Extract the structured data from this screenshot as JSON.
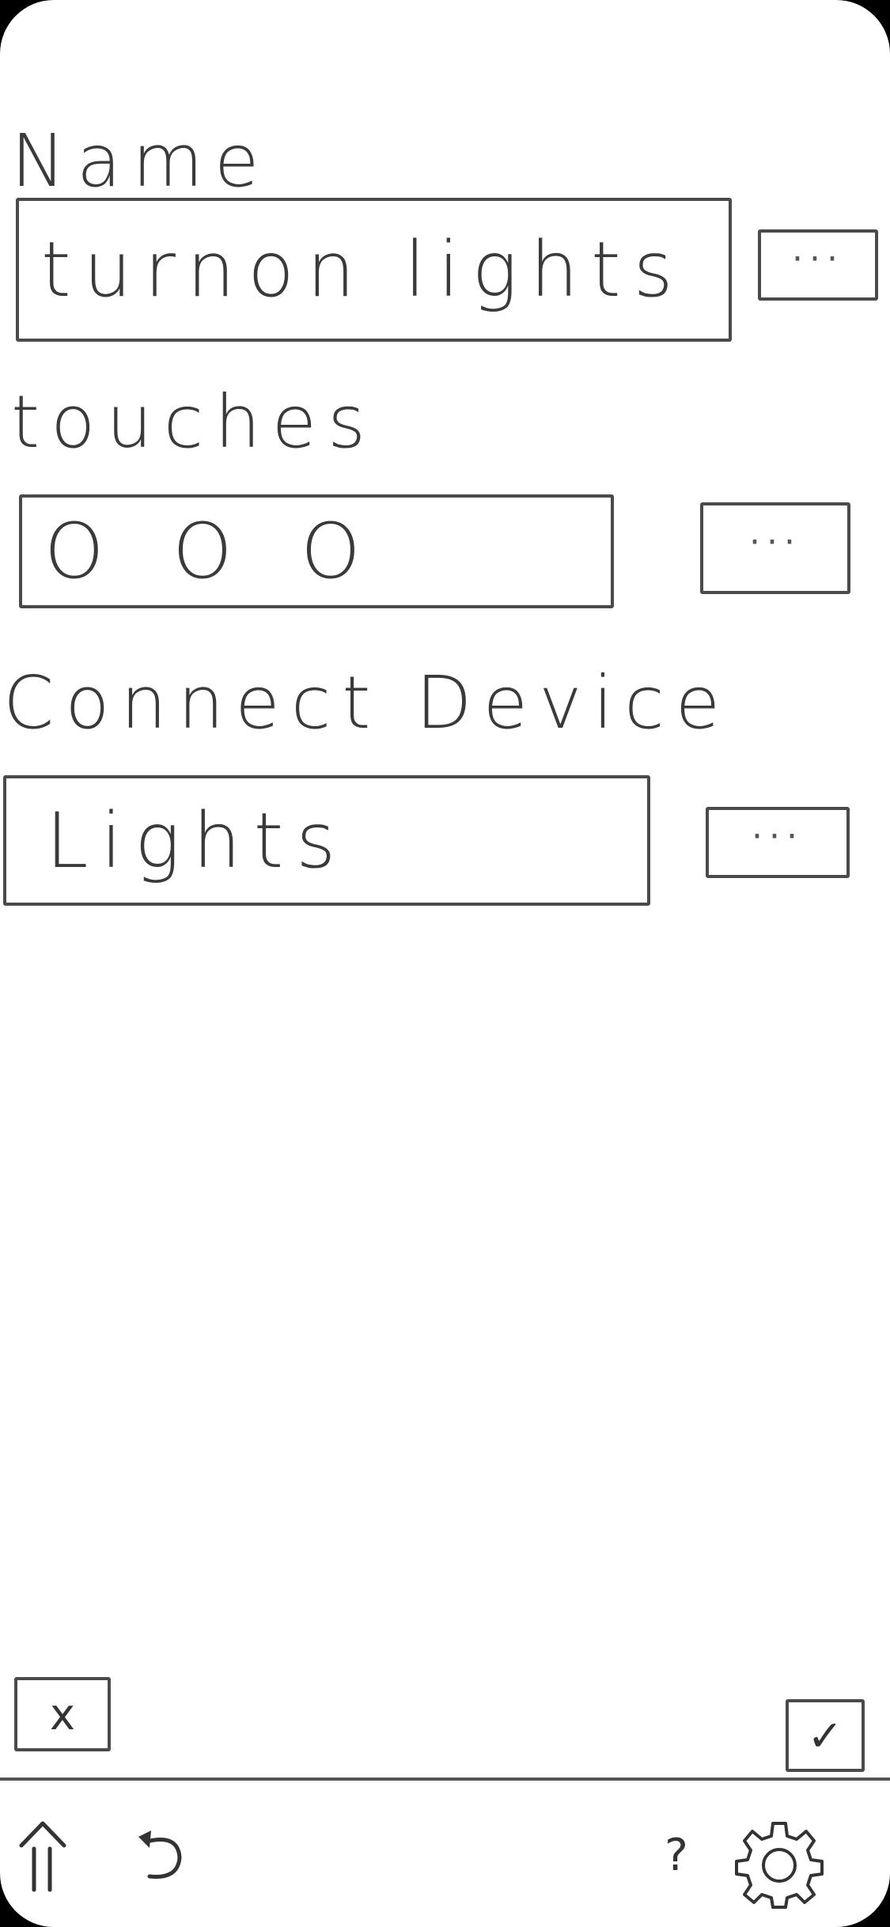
{
  "form": {
    "name_label": "Name",
    "name_value": "turnon lights",
    "touches_label": "touches",
    "touches_value": "O O O",
    "device_label": "Connect Device",
    "device_value": "Lights",
    "more_label": "···"
  },
  "actions": {
    "cancel_label": "x",
    "confirm_label": "✓"
  },
  "bottom_bar": {
    "help_label": "?"
  },
  "icons": {
    "home": "home-icon",
    "back": "back-icon",
    "help": "help-icon",
    "settings": "gear-icon"
  }
}
